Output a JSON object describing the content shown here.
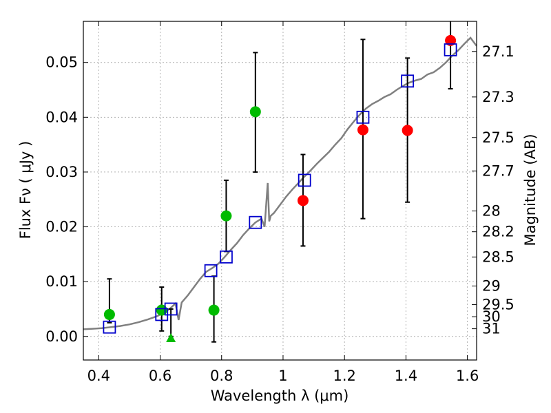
{
  "chart_data": {
    "type": "scatter",
    "title": "",
    "xlabel": "Wavelength  λ (μm)",
    "ylabel": "Flux  Fν  ( μJy )",
    "ylabel_right": "Magnitude (AB)",
    "xlim": [
      0.35,
      1.63
    ],
    "ylim": [
      -0.0043,
      0.0575
    ],
    "grid": true,
    "x_ticks": [
      0.4,
      0.6,
      0.8,
      1.0,
      1.2,
      1.4,
      1.6
    ],
    "x_tick_labels": [
      "0.4",
      "0.6",
      "0.8",
      "1",
      "1.2",
      "1.4",
      "1.6"
    ],
    "y_ticks": [
      0.0,
      0.01,
      0.02,
      0.03,
      0.04,
      0.05
    ],
    "y_tick_labels": [
      "0.00",
      "0.01",
      "0.02",
      "0.03",
      "0.04",
      "0.05"
    ],
    "right_ticks": [
      {
        "flux": 0.052,
        "label": "27.1"
      },
      {
        "flux": 0.0437,
        "label": "27.3"
      },
      {
        "flux": 0.0363,
        "label": "27.5"
      },
      {
        "flux": 0.0302,
        "label": "27.7"
      },
      {
        "flux": 0.0229,
        "label": "28"
      },
      {
        "flux": 0.0191,
        "label": "28.2"
      },
      {
        "flux": 0.0145,
        "label": "28.5"
      },
      {
        "flux": 0.0092,
        "label": "29"
      },
      {
        "flux": 0.0058,
        "label": "29.5"
      },
      {
        "flux": 0.0036,
        "label": "30"
      },
      {
        "flux": 0.0014,
        "label": "31"
      }
    ],
    "colors": {
      "model": "#808080",
      "green": "#00bb00",
      "red": "#ff0000",
      "model_box": "#0000cc",
      "errorbar": "#000000"
    },
    "series": [
      {
        "marker": "circle",
        "color": "green",
        "x": [
          0.435,
          0.605,
          0.775,
          0.815,
          0.91
        ],
        "y": [
          0.004,
          0.0048,
          0.0048,
          0.022,
          0.041
        ],
        "yerr_low": [
          0.0025,
          0.001,
          -0.001,
          0.0155,
          0.03
        ],
        "yerr_high": [
          0.0105,
          0.009,
          0.011,
          0.0285,
          0.0518
        ]
      },
      {
        "marker": "triangle",
        "color": "green",
        "x": [
          0.635
        ],
        "y": [
          -0.0004
        ],
        "yerr_low": [
          0.0
        ],
        "yerr_high": [
          0.005
        ]
      },
      {
        "marker": "circle",
        "color": "red",
        "x": [
          1.065,
          1.26,
          1.405,
          1.545
        ],
        "y": [
          0.0248,
          0.0377,
          0.0376,
          0.054
        ],
        "yerr_low": [
          0.0165,
          0.0215,
          0.0245,
          0.0452
        ],
        "yerr_high": [
          0.0332,
          0.0542,
          0.0508,
          0.058
        ]
      },
      {
        "marker": "square",
        "color": "model_box",
        "x": [
          0.435,
          0.605,
          0.635,
          0.765,
          0.815,
          0.91,
          1.07,
          1.26,
          1.405,
          1.545
        ],
        "y": [
          0.0017,
          0.004,
          0.005,
          0.012,
          0.0145,
          0.0208,
          0.0285,
          0.04,
          0.0466,
          0.0523
        ]
      }
    ],
    "model_curve": {
      "color": "model",
      "x": [
        0.35,
        0.38,
        0.41,
        0.44,
        0.47,
        0.5,
        0.53,
        0.56,
        0.59,
        0.61,
        0.63,
        0.65,
        0.66,
        0.67,
        0.69,
        0.71,
        0.73,
        0.75,
        0.77,
        0.79,
        0.81,
        0.83,
        0.85,
        0.87,
        0.89,
        0.91,
        0.93,
        0.94,
        0.95,
        0.955,
        0.96,
        0.97,
        0.99,
        1.01,
        1.03,
        1.05,
        1.07,
        1.09,
        1.11,
        1.13,
        1.15,
        1.17,
        1.19,
        1.21,
        1.23,
        1.25,
        1.27,
        1.29,
        1.31,
        1.33,
        1.35,
        1.37,
        1.39,
        1.41,
        1.43,
        1.45,
        1.47,
        1.49,
        1.51,
        1.53,
        1.55,
        1.57,
        1.59,
        1.61,
        1.63
      ],
      "y": [
        0.0013,
        0.0014,
        0.0015,
        0.0017,
        0.0019,
        0.0022,
        0.0026,
        0.0031,
        0.0037,
        0.0043,
        0.005,
        0.006,
        0.003,
        0.0062,
        0.0075,
        0.009,
        0.0105,
        0.0118,
        0.0125,
        0.0133,
        0.0145,
        0.0158,
        0.017,
        0.0185,
        0.0197,
        0.0208,
        0.0215,
        0.02,
        0.028,
        0.021,
        0.022,
        0.0225,
        0.024,
        0.0255,
        0.0268,
        0.028,
        0.0292,
        0.0303,
        0.0315,
        0.0326,
        0.0337,
        0.035,
        0.0362,
        0.0378,
        0.0392,
        0.0405,
        0.0416,
        0.0424,
        0.043,
        0.0437,
        0.0442,
        0.045,
        0.0457,
        0.0463,
        0.0467,
        0.047,
        0.0478,
        0.0482,
        0.049,
        0.05,
        0.0512,
        0.0522,
        0.0534,
        0.0545,
        0.053
      ]
    }
  }
}
